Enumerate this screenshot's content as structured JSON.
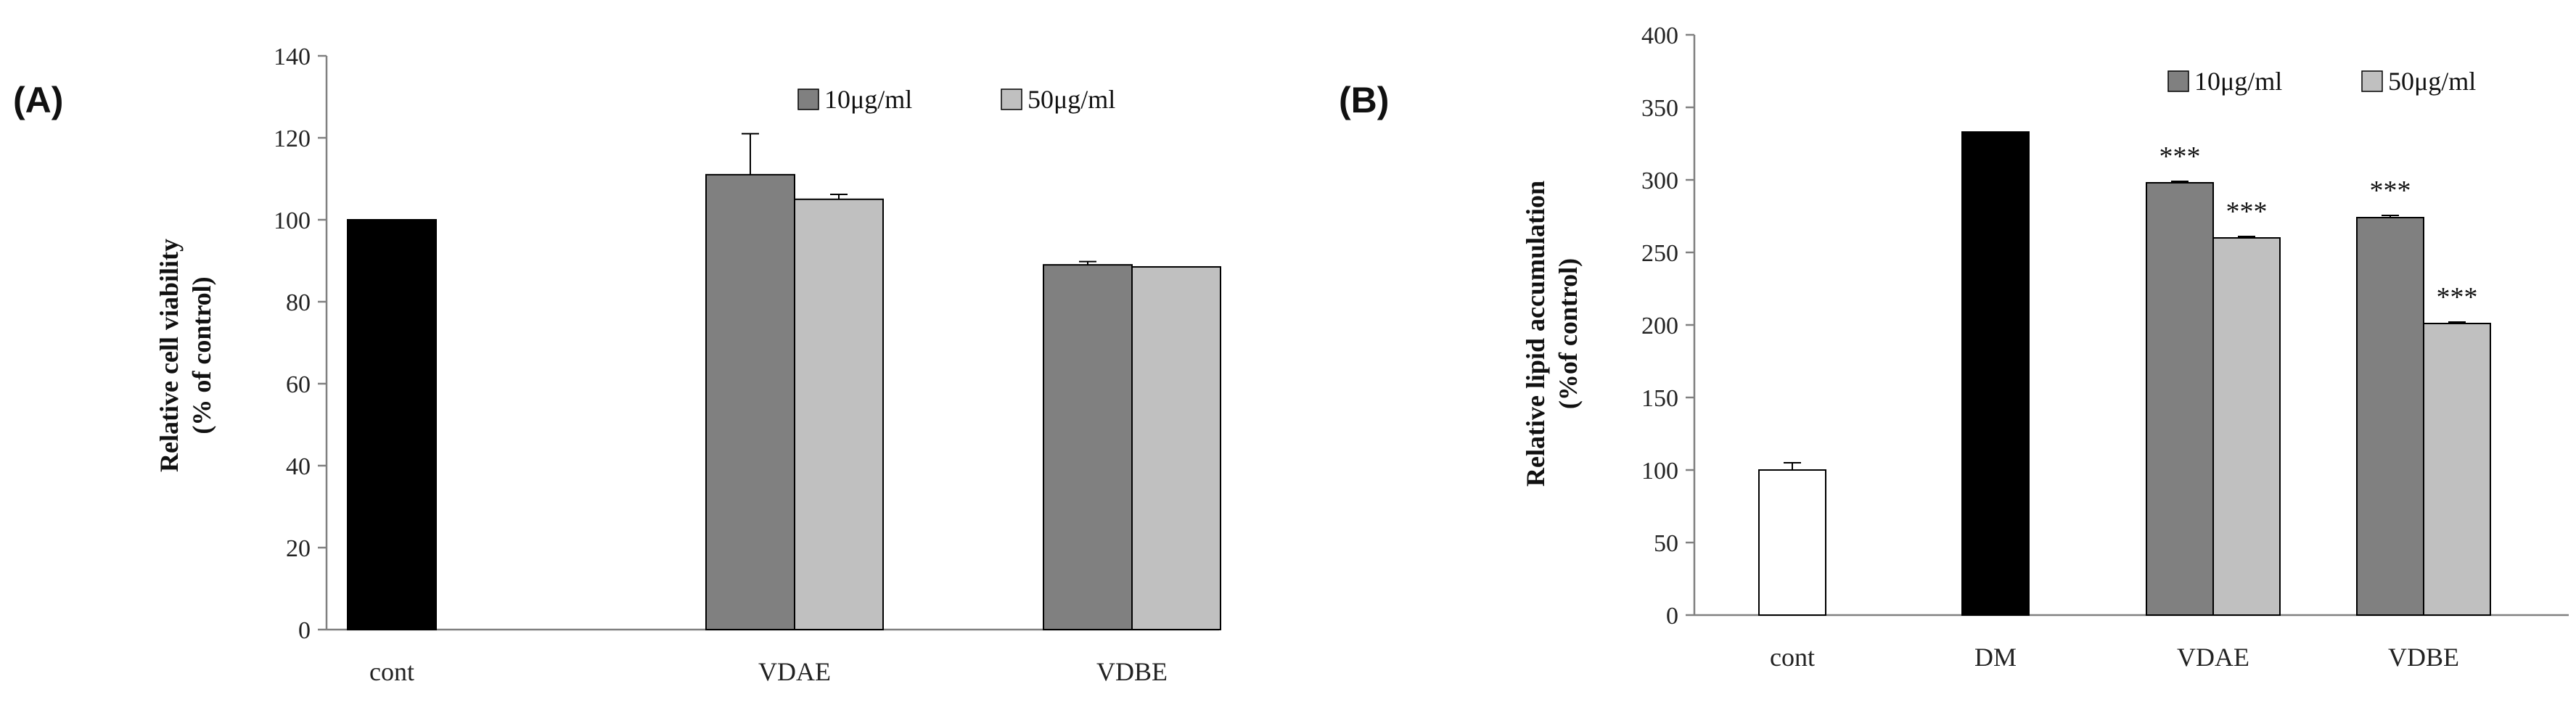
{
  "chart_data": [
    {
      "type": "bar",
      "panel": "(A)",
      "title": "",
      "xlabel": "",
      "ylabel_line1": "Relative cell viability",
      "ylabel_line2": "(% of control)",
      "ylim": [
        0,
        140
      ],
      "yticks": [
        0,
        20,
        40,
        60,
        80,
        100,
        120,
        140
      ],
      "categories": [
        "cont",
        "VDAE",
        "VDBE"
      ],
      "series": [
        {
          "name": "control",
          "color": "#000000",
          "values": [
            100,
            null,
            null
          ],
          "errors": [
            0,
            null,
            null
          ]
        },
        {
          "name": "10μg/ml",
          "color": "#808080",
          "values": [
            null,
            111,
            89
          ],
          "errors": [
            null,
            10,
            0.8
          ]
        },
        {
          "name": "50μg/ml",
          "color": "#c0c0c0",
          "values": [
            null,
            105,
            88.5
          ],
          "errors": [
            null,
            1.2,
            0
          ]
        }
      ],
      "legend": {
        "position": "top-right",
        "entries": [
          "10μg/ml",
          "50μg/ml"
        ]
      },
      "annotations": []
    },
    {
      "type": "bar",
      "panel": "(B)",
      "title": "",
      "xlabel": "",
      "ylabel_line1": "Relative lipid accumulation",
      "ylabel_line2": "(%of control)",
      "ylim": [
        0,
        400
      ],
      "yticks": [
        0,
        50,
        100,
        150,
        200,
        250,
        300,
        350,
        400
      ],
      "categories": [
        "cont",
        "DM",
        "VDAE",
        "VDBE"
      ],
      "series": [
        {
          "name": "control",
          "color": "#ffffff",
          "values": [
            100,
            null,
            null,
            null
          ],
          "errors": [
            5,
            null,
            null,
            null
          ]
        },
        {
          "name": "DM",
          "color": "#000000",
          "values": [
            null,
            333,
            null,
            null
          ],
          "errors": [
            null,
            0,
            null,
            null
          ]
        },
        {
          "name": "10μg/ml",
          "color": "#808080",
          "values": [
            null,
            null,
            298,
            274
          ],
          "errors": [
            null,
            null,
            1,
            1.5
          ]
        },
        {
          "name": "50μg/ml",
          "color": "#c0c0c0",
          "values": [
            null,
            null,
            260,
            201
          ],
          "errors": [
            null,
            null,
            1,
            1
          ]
        }
      ],
      "legend": {
        "position": "top-right",
        "entries": [
          "10μg/ml",
          "50μg/ml"
        ]
      },
      "annotations": [
        {
          "category": "VDAE",
          "series": "10μg/ml",
          "text": "***"
        },
        {
          "category": "VDAE",
          "series": "50μg/ml",
          "text": "***"
        },
        {
          "category": "VDBE",
          "series": "10μg/ml",
          "text": "***"
        },
        {
          "category": "VDBE",
          "series": "50μg/ml",
          "text": "***"
        }
      ]
    }
  ],
  "colors": {
    "axis": "#808080",
    "outline": "#000000"
  }
}
